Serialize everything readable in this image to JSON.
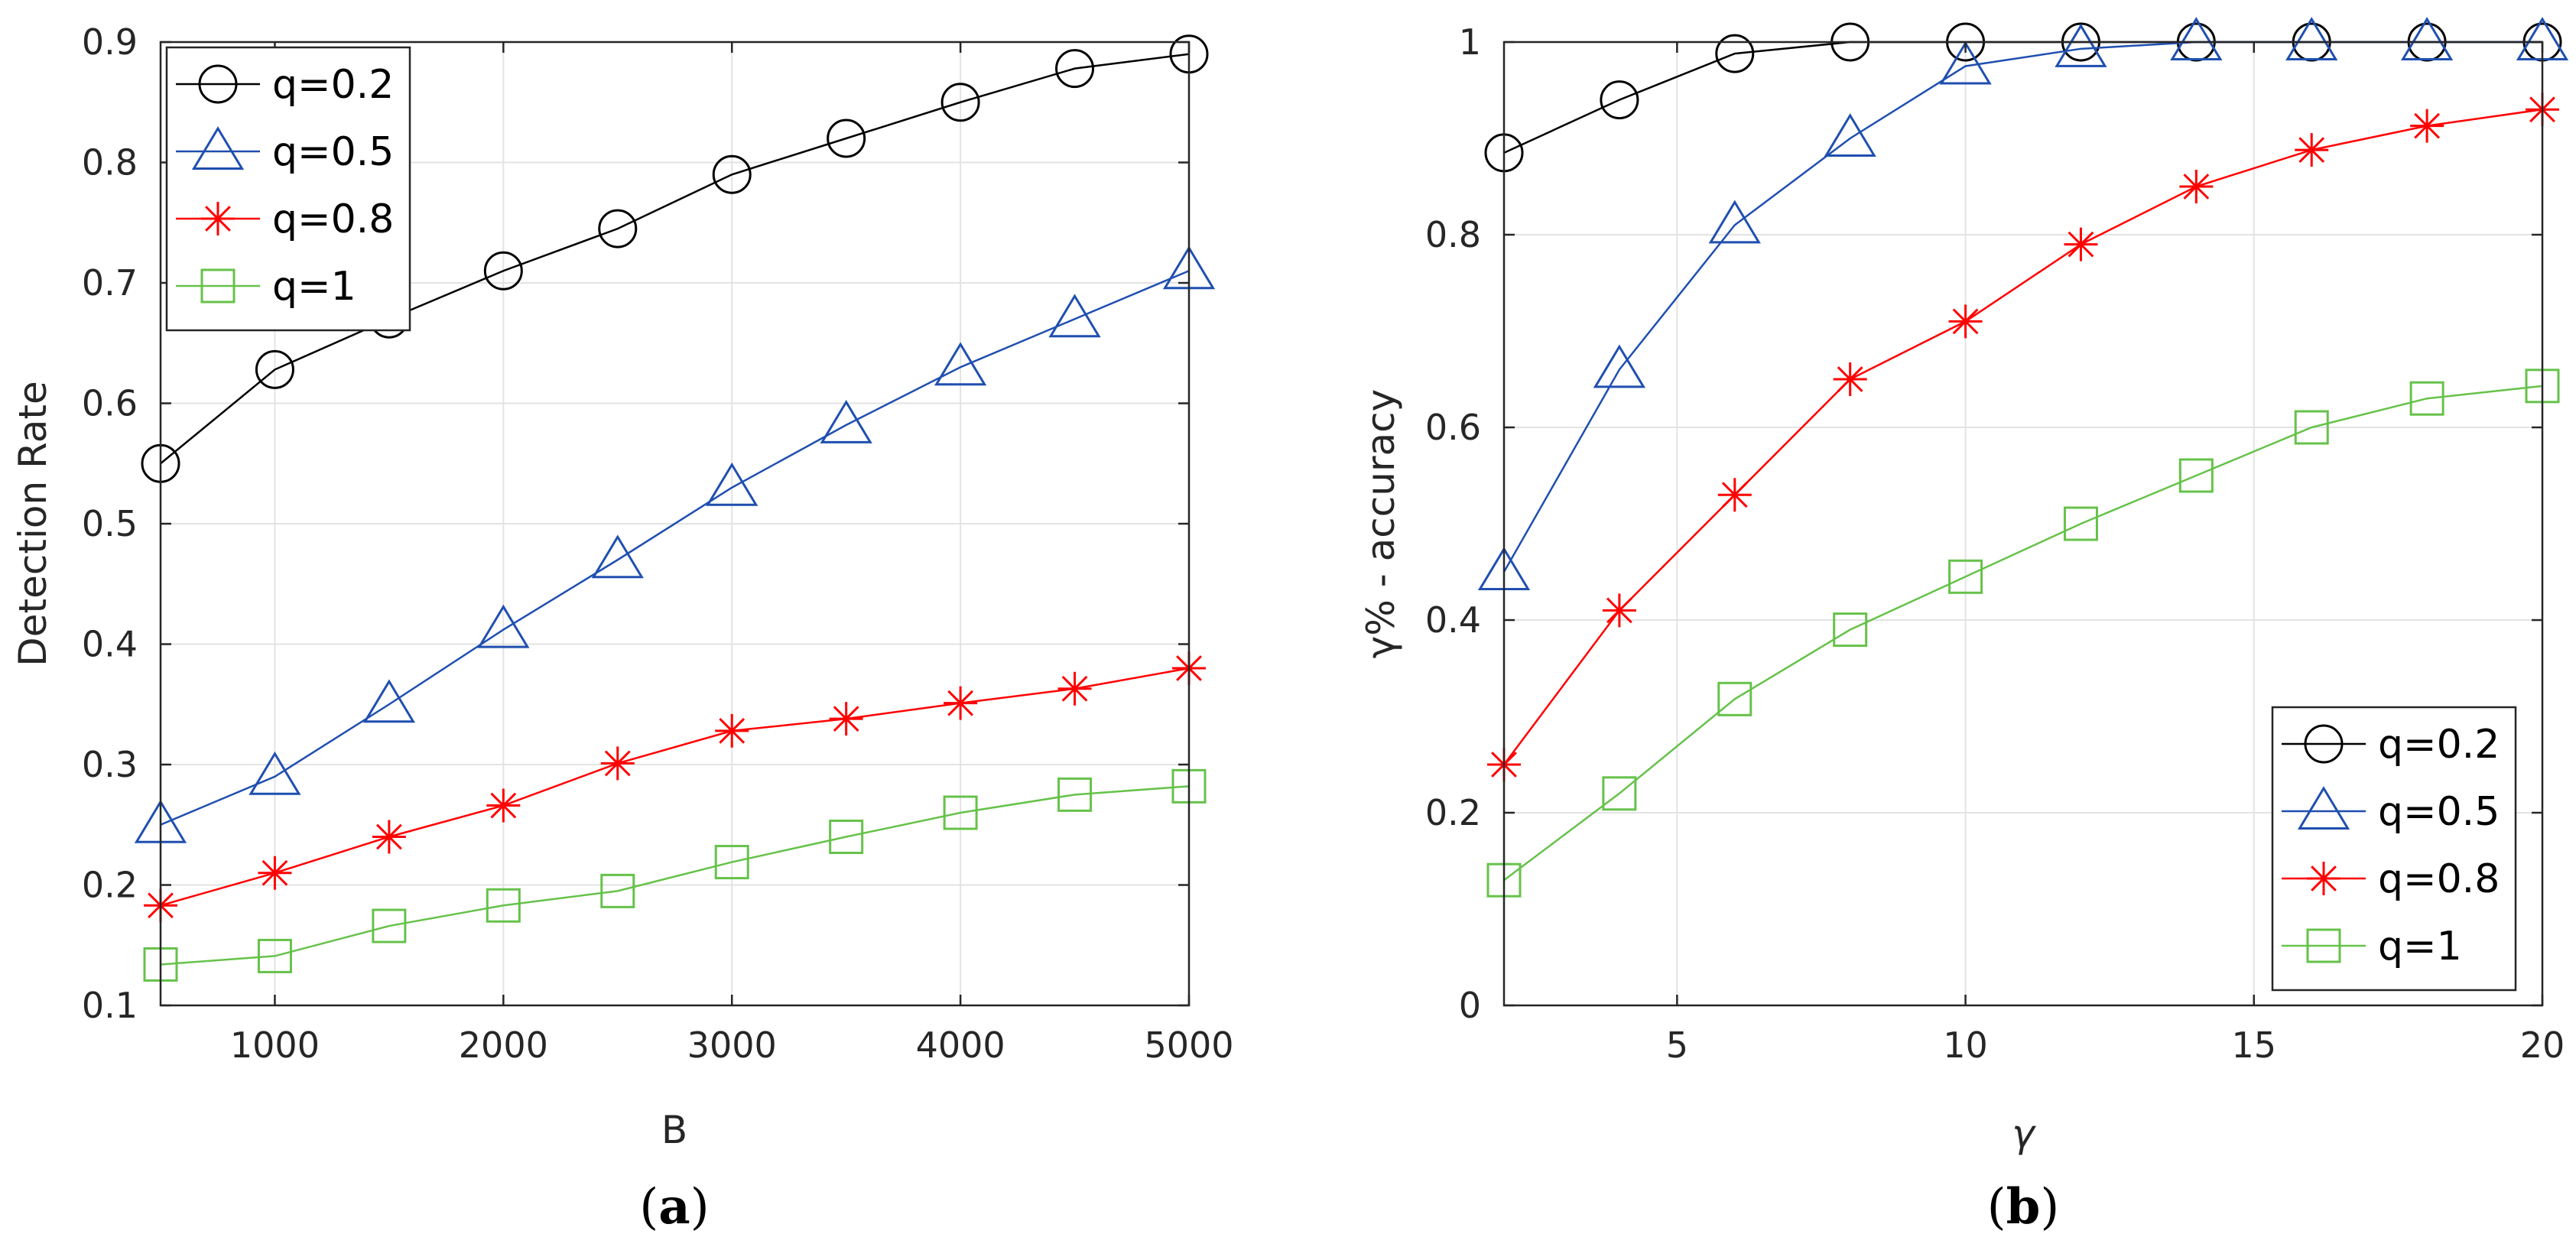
{
  "chart_data": [
    {
      "type": "line",
      "xlabel": "B",
      "ylabel": "Detection Rate",
      "xlim": [
        500,
        5000
      ],
      "ylim": [
        0.1,
        0.9
      ],
      "xticks": [
        1000,
        2000,
        3000,
        4000,
        5000
      ],
      "xtick_labels": [
        "1000",
        "2000",
        "3000",
        "4000",
        "5000"
      ],
      "yticks": [
        0.1,
        0.2,
        0.3,
        0.4,
        0.5,
        0.6,
        0.7,
        0.8,
        0.9
      ],
      "ytick_labels": [
        "0.1",
        "0.2",
        "0.3",
        "0.4",
        "0.5",
        "0.6",
        "0.7",
        "0.8",
        "0.9"
      ],
      "grid": true,
      "legend_position": "top-left",
      "caption": "a",
      "x": [
        500,
        1000,
        1500,
        2000,
        2500,
        3000,
        3500,
        4000,
        4500,
        5000
      ],
      "series": [
        {
          "name": "q=0.2",
          "color": "#000000",
          "marker": "circle",
          "values": [
            0.55,
            0.628,
            0.67,
            0.71,
            0.745,
            0.79,
            0.82,
            0.85,
            0.878,
            0.89
          ]
        },
        {
          "name": "q=0.5",
          "color": "#1f4fb0",
          "marker": "triangle",
          "values": [
            0.25,
            0.29,
            0.35,
            0.412,
            0.47,
            0.53,
            0.582,
            0.63,
            0.67,
            0.71
          ]
        },
        {
          "name": "q=0.8",
          "color": "#ff0000",
          "marker": "star",
          "values": [
            0.183,
            0.21,
            0.24,
            0.266,
            0.301,
            0.328,
            0.338,
            0.351,
            0.363,
            0.38
          ]
        },
        {
          "name": "q=1",
          "color": "#66c24a",
          "marker": "square",
          "values": [
            0.134,
            0.141,
            0.166,
            0.183,
            0.195,
            0.219,
            0.24,
            0.26,
            0.275,
            0.282
          ]
        }
      ]
    },
    {
      "type": "line",
      "xlabel": "γ",
      "ylabel": "γ% - accuracy",
      "xlim": [
        2,
        20
      ],
      "ylim": [
        0,
        1
      ],
      "xticks": [
        5,
        10,
        15,
        20
      ],
      "xtick_labels": [
        "5",
        "10",
        "15",
        "20"
      ],
      "yticks": [
        0,
        0.2,
        0.4,
        0.6,
        0.8,
        1
      ],
      "ytick_labels": [
        "0",
        "0.2",
        "0.4",
        "0.6",
        "0.8",
        "1"
      ],
      "grid": true,
      "legend_position": "bottom-right",
      "caption": "b",
      "x": [
        2,
        4,
        6,
        8,
        10,
        12,
        14,
        16,
        18,
        20
      ],
      "series": [
        {
          "name": "q=0.2",
          "color": "#000000",
          "marker": "circle",
          "values": [
            0.885,
            0.94,
            0.988,
            1.0,
            1.0,
            1.0,
            1.0,
            1.0,
            1.0,
            1.0
          ]
        },
        {
          "name": "q=0.5",
          "color": "#1f4fb0",
          "marker": "triangle",
          "values": [
            0.45,
            0.66,
            0.81,
            0.9,
            0.975,
            0.993,
            1.0,
            1.0,
            1.0,
            1.0
          ]
        },
        {
          "name": "q=0.8",
          "color": "#ff0000",
          "marker": "star",
          "values": [
            0.25,
            0.41,
            0.53,
            0.65,
            0.71,
            0.79,
            0.85,
            0.888,
            0.913,
            0.93
          ]
        },
        {
          "name": "q=1",
          "color": "#66c24a",
          "marker": "square",
          "values": [
            0.13,
            0.22,
            0.318,
            0.39,
            0.445,
            0.5,
            0.55,
            0.6,
            0.63,
            0.643
          ]
        }
      ]
    }
  ]
}
